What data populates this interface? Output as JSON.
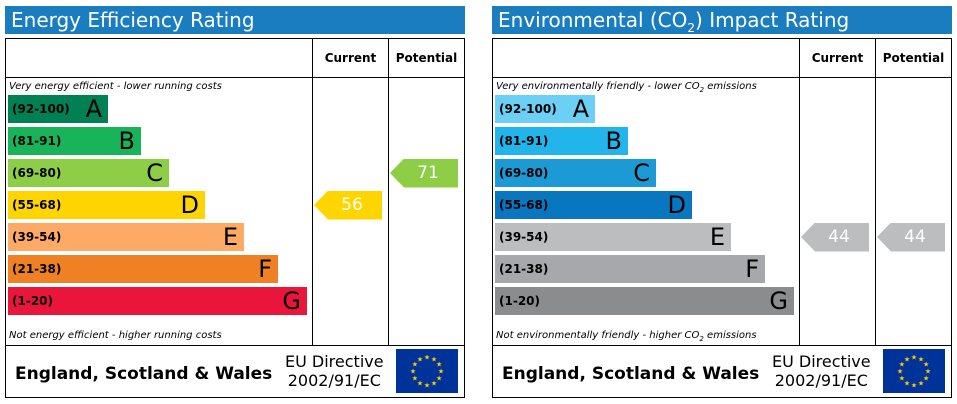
{
  "energy": {
    "title": "Energy Efficiency Rating",
    "col_current": "Current",
    "col_potential": "Potential",
    "top_note": "Very energy efficient - lower running costs",
    "bottom_note": "Not energy efficient - higher running costs",
    "bands": [
      {
        "range": "(92-100)",
        "letter": "A",
        "color": "#008054"
      },
      {
        "range": "(81-91)",
        "letter": "B",
        "color": "#19b459"
      },
      {
        "range": "(69-80)",
        "letter": "C",
        "color": "#8dce46"
      },
      {
        "range": "(55-68)",
        "letter": "D",
        "color": "#ffd500"
      },
      {
        "range": "(39-54)",
        "letter": "E",
        "color": "#fcaa65"
      },
      {
        "range": "(21-38)",
        "letter": "F",
        "color": "#ef8023"
      },
      {
        "range": "(1-20)",
        "letter": "G",
        "color": "#e9153b"
      }
    ],
    "current_value": "56",
    "current_color": "#ffd500",
    "potential_value": "71",
    "potential_color": "#8dce46",
    "footer_region": "England, Scotland & Wales",
    "footer_directive_line1": "EU Directive",
    "footer_directive_line2": "2002/91/EC"
  },
  "environmental": {
    "title_prefix": "Environmental (CO",
    "title_sub": "2",
    "title_suffix": ") Impact Rating",
    "col_current": "Current",
    "col_potential": "Potential",
    "top_note_prefix": "Very environmentally friendly - lower CO",
    "top_note_sub": "2",
    "top_note_suffix": " emissions",
    "bottom_note_prefix": "Not environmentally friendly - higher CO",
    "bottom_note_sub": "2",
    "bottom_note_suffix": " emissions",
    "bands": [
      {
        "range": "(92-100)",
        "letter": "A",
        "color": "#6ccff6"
      },
      {
        "range": "(81-91)",
        "letter": "B",
        "color": "#22b5eb"
      },
      {
        "range": "(69-80)",
        "letter": "C",
        "color": "#1c9ad6"
      },
      {
        "range": "(55-68)",
        "letter": "D",
        "color": "#0877bf"
      },
      {
        "range": "(39-54)",
        "letter": "E",
        "color": "#bbbdbf"
      },
      {
        "range": "(21-38)",
        "letter": "F",
        "color": "#a6a8ab"
      },
      {
        "range": "(1-20)",
        "letter": "G",
        "color": "#8b8c8e"
      }
    ],
    "current_value": "44",
    "current_color": "#bbbdbf",
    "potential_value": "44",
    "potential_color": "#bbbdbf",
    "footer_region": "England, Scotland & Wales",
    "footer_directive_line1": "EU Directive",
    "footer_directive_line2": "2002/91/EC"
  }
}
